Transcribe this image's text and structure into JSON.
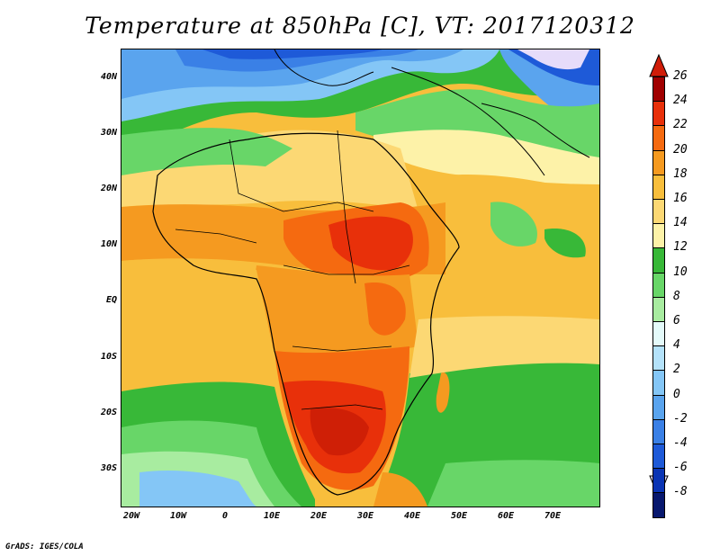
{
  "title": "Temperature at 850hPa [C], VT: 2017120312",
  "credit": "GrADS: IGES/COLA",
  "map": {
    "lat_labels": [
      "40N",
      "30N",
      "20N",
      "10N",
      "EQ",
      "10S",
      "20S",
      "30S"
    ],
    "lon_labels": [
      "20W",
      "10W",
      "0",
      "10E",
      "20E",
      "30E",
      "40E",
      "50E",
      "60E",
      "70E"
    ]
  },
  "colorbar": {
    "labels": [
      "26",
      "24",
      "22",
      "20",
      "18",
      "16",
      "14",
      "12",
      "10",
      "8",
      "6",
      "4",
      "2",
      "0",
      "-2",
      "-4",
      "-6",
      "-8"
    ],
    "colors": [
      "#a00000",
      "#e8300a",
      "#f56a10",
      "#f59a20",
      "#f8be3c",
      "#fcd874",
      "#fdf2a8",
      "#38b838",
      "#68d668",
      "#a8eca0",
      "#e4fafa",
      "#b4e2fa",
      "#84c6f6",
      "#5aa4ee",
      "#3a80e6",
      "#1e5ad8",
      "#0a34b4",
      "#08186e"
    ],
    "top_arrow_color": "#d01c08",
    "bottom_arrow_color": "#e6dcfa"
  }
}
